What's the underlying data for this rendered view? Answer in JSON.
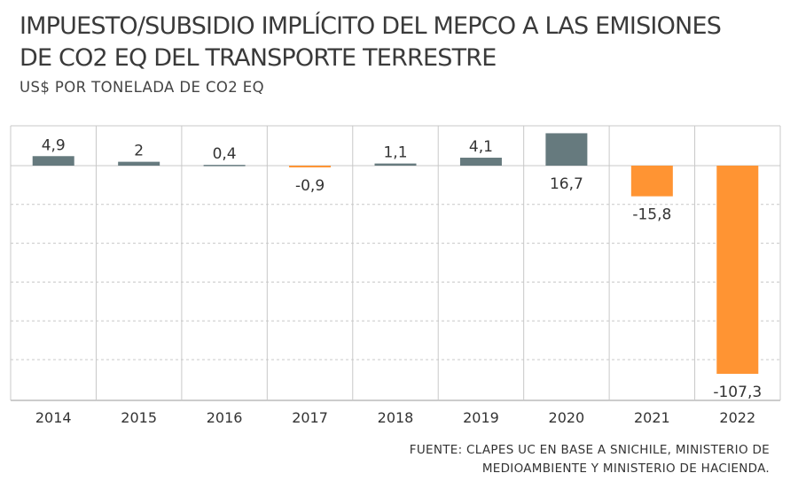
{
  "chart_data": {
    "type": "bar",
    "title_lines": [
      "IMPUESTO/SUBSIDIO IMPLÍCITO DEL MEPCO A LAS EMISIONES",
      "DE CO2 EQ DEL TRANSPORTE TERRESTRE"
    ],
    "subtitle": "US$ POR TONELADA DE CO2 EQ",
    "categories": [
      "2014",
      "2015",
      "2016",
      "2017",
      "2018",
      "2019",
      "2020",
      "2021",
      "2022"
    ],
    "values": [
      4.9,
      2,
      0.4,
      -0.9,
      1.1,
      4.1,
      16.7,
      -15.8,
      -107.3
    ],
    "value_labels": [
      "4,9",
      "2",
      "0,4",
      "-0,9",
      "1,1",
      "4,1",
      "16,7",
      "-15,8",
      "-107,3"
    ],
    "ylim": [
      -120,
      17
    ],
    "grid": true,
    "colors": {
      "positive": "#667a7e",
      "negative": "#ff9433",
      "grid": "#c8c8c8"
    },
    "source_lines": [
      "FUENTE: CLAPES UC EN BASE A SNICHILE, MINISTERIO DE",
      "MEDIOAMBIENTE Y MINISTERIO DE HACIENDA."
    ]
  }
}
